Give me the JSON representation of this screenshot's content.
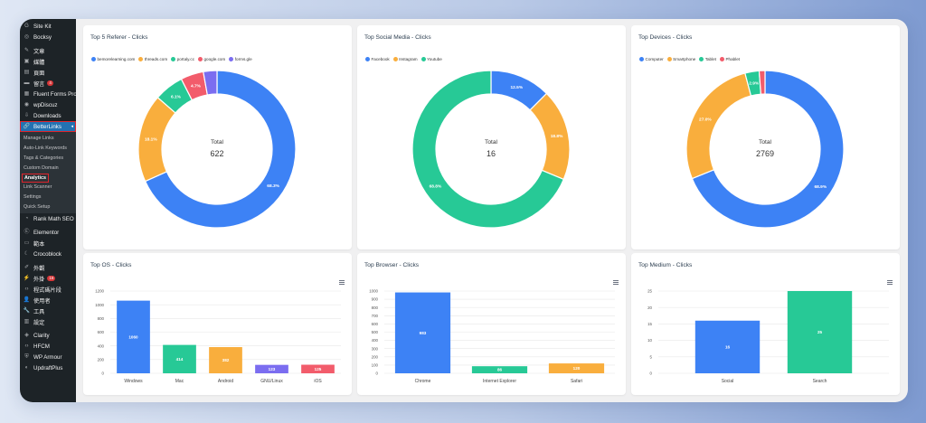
{
  "sidebar": {
    "items_top": [
      {
        "label": "Site Kit",
        "icon": "G"
      },
      {
        "label": "Bocksy",
        "icon": "◎"
      },
      {
        "label": "",
        "icon": ""
      },
      {
        "label": "文章",
        "icon": "✎"
      },
      {
        "label": "媒體",
        "icon": "▣"
      },
      {
        "label": "頁面",
        "icon": "▤"
      },
      {
        "label": "留言",
        "icon": "▬",
        "badge": "4"
      },
      {
        "label": "Fluent Forms Pro",
        "icon": "▦"
      },
      {
        "label": "wpDiscuz",
        "icon": "◉"
      },
      {
        "label": "Downloads",
        "icon": "⇩"
      }
    ],
    "active_item": {
      "label": "BetterLinks",
      "icon": "🔗",
      "arrow": "◂"
    },
    "submenu": [
      "Manage Links",
      "Auto-Link Keywords",
      "Tags & Categories",
      "Custom Domain",
      "Analytics",
      "Link Scanner",
      "Settings",
      "Quick Setup"
    ],
    "current_sub": "Analytics",
    "items_bottom": [
      {
        "label": "Rank Math SEO",
        "icon": "◔"
      },
      {
        "label": "",
        "icon": ""
      },
      {
        "label": "Elementor",
        "icon": "Ⓔ"
      },
      {
        "label": "範本",
        "icon": "▭"
      },
      {
        "label": "Crocoblock",
        "icon": "☾"
      },
      {
        "label": "",
        "icon": ""
      },
      {
        "label": "外觀",
        "icon": "✐"
      },
      {
        "label": "外掛",
        "icon": "⚡",
        "badge": "16"
      },
      {
        "label": "程式碼片段",
        "icon": "‹›"
      },
      {
        "label": "使用者",
        "icon": "👤"
      },
      {
        "label": "工具",
        "icon": "🔧"
      },
      {
        "label": "設定",
        "icon": "▥"
      },
      {
        "label": "",
        "icon": ""
      },
      {
        "label": "Clarity",
        "icon": "◈"
      },
      {
        "label": "HFCM",
        "icon": "‹›"
      },
      {
        "label": "WP Armour",
        "icon": "⛨"
      },
      {
        "label": "UpdraftPlus",
        "icon": "◐"
      }
    ]
  },
  "colors": {
    "blue": "#3d82f5",
    "orange": "#f9ae3d",
    "green": "#27c996",
    "red": "#f25c6b",
    "purple": "#7b6df0"
  },
  "donuts": [
    {
      "title": "Top 5 Referer - Clicks",
      "total_label": "Total",
      "total_value": "622",
      "legend": [
        {
          "label": "bemorelearning.com",
          "color": "#3d82f5"
        },
        {
          "label": "threads.com",
          "color": "#f9ae3d"
        },
        {
          "label": "portaly.cc",
          "color": "#27c996"
        },
        {
          "label": "google.com",
          "color": "#f25c6b"
        },
        {
          "label": "forms.gle",
          "color": "#7b6df0"
        }
      ],
      "slices": [
        {
          "value": 68.3,
          "label": "68.3%",
          "color": "#3d82f5"
        },
        {
          "value": 18.1,
          "label": "18.1%",
          "color": "#f9ae3d"
        },
        {
          "value": 6.1,
          "label": "6.1%",
          "color": "#27c996"
        },
        {
          "value": 4.7,
          "label": "4.7%",
          "color": "#f25c6b"
        },
        {
          "value": 2.8,
          "label": "",
          "color": "#7b6df0"
        }
      ]
    },
    {
      "title": "Top Social Media - Clicks",
      "total_label": "Total",
      "total_value": "16",
      "legend": [
        {
          "label": "Facebook",
          "color": "#3d82f5"
        },
        {
          "label": "Instagram",
          "color": "#f9ae3d"
        },
        {
          "label": "Youtube",
          "color": "#27c996"
        }
      ],
      "slices": [
        {
          "value": 12.5,
          "label": "12.5%",
          "color": "#3d82f5"
        },
        {
          "value": 18.8,
          "label": "18.8%",
          "color": "#f9ae3d"
        },
        {
          "value": 68.8,
          "label": "68.8%",
          "color": "#27c996"
        }
      ]
    },
    {
      "title": "Top Devices - Clicks",
      "total_label": "Total",
      "total_value": "2769",
      "legend": [
        {
          "label": "Computer",
          "color": "#3d82f5"
        },
        {
          "label": "Smartphone",
          "color": "#f9ae3d"
        },
        {
          "label": "Tablet",
          "color": "#27c996"
        },
        {
          "label": "Phablet",
          "color": "#f25c6b"
        }
      ],
      "slices": [
        {
          "value": 68.9,
          "label": "68.9%",
          "color": "#3d82f5"
        },
        {
          "value": 27.0,
          "label": "27.0%",
          "color": "#f9ae3d"
        },
        {
          "value": 2.9,
          "label": "2.9%",
          "color": "#27c996"
        },
        {
          "value": 1.2,
          "label": "",
          "color": "#f25c6b"
        }
      ]
    }
  ],
  "bars": [
    {
      "title": "Top OS - Clicks",
      "ymax": 1200,
      "ticks": [
        "0",
        "200",
        "400",
        "600",
        "800",
        "1000",
        "1200"
      ],
      "items": [
        {
          "category": "Windows",
          "value": 1060,
          "label": "1060",
          "color": "#3d82f5"
        },
        {
          "category": "Mac",
          "value": 414,
          "label": "414",
          "color": "#27c996"
        },
        {
          "category": "Android",
          "value": 382,
          "label": "382",
          "color": "#f9ae3d"
        },
        {
          "category": "GNU/Linux",
          "value": 123,
          "label": "123",
          "color": "#7b6df0"
        },
        {
          "category": "iOS",
          "value": 125,
          "label": "125",
          "color": "#f25c6b"
        }
      ]
    },
    {
      "title": "Top Browser - Clicks",
      "ymax": 1000,
      "ticks": [
        "0",
        "100",
        "200",
        "300",
        "400",
        "500",
        "600",
        "700",
        "800",
        "900",
        "1000"
      ],
      "items": [
        {
          "category": "Chrome",
          "value": 983,
          "label": "983",
          "color": "#3d82f5"
        },
        {
          "category": "Internet Explorer",
          "value": 86,
          "label": "86",
          "color": "#27c996"
        },
        {
          "category": "Safari",
          "value": 120,
          "label": "120",
          "color": "#f9ae3d"
        }
      ]
    },
    {
      "title": "Top Medium - Clicks",
      "ymax": 25,
      "ticks": [
        "0",
        "5",
        "10",
        "15",
        "20",
        "25"
      ],
      "items": [
        {
          "category": "Social",
          "value": 16,
          "label": "16",
          "color": "#3d82f5"
        },
        {
          "category": "Search",
          "value": 25,
          "label": "25",
          "color": "#27c996"
        }
      ]
    }
  ]
}
